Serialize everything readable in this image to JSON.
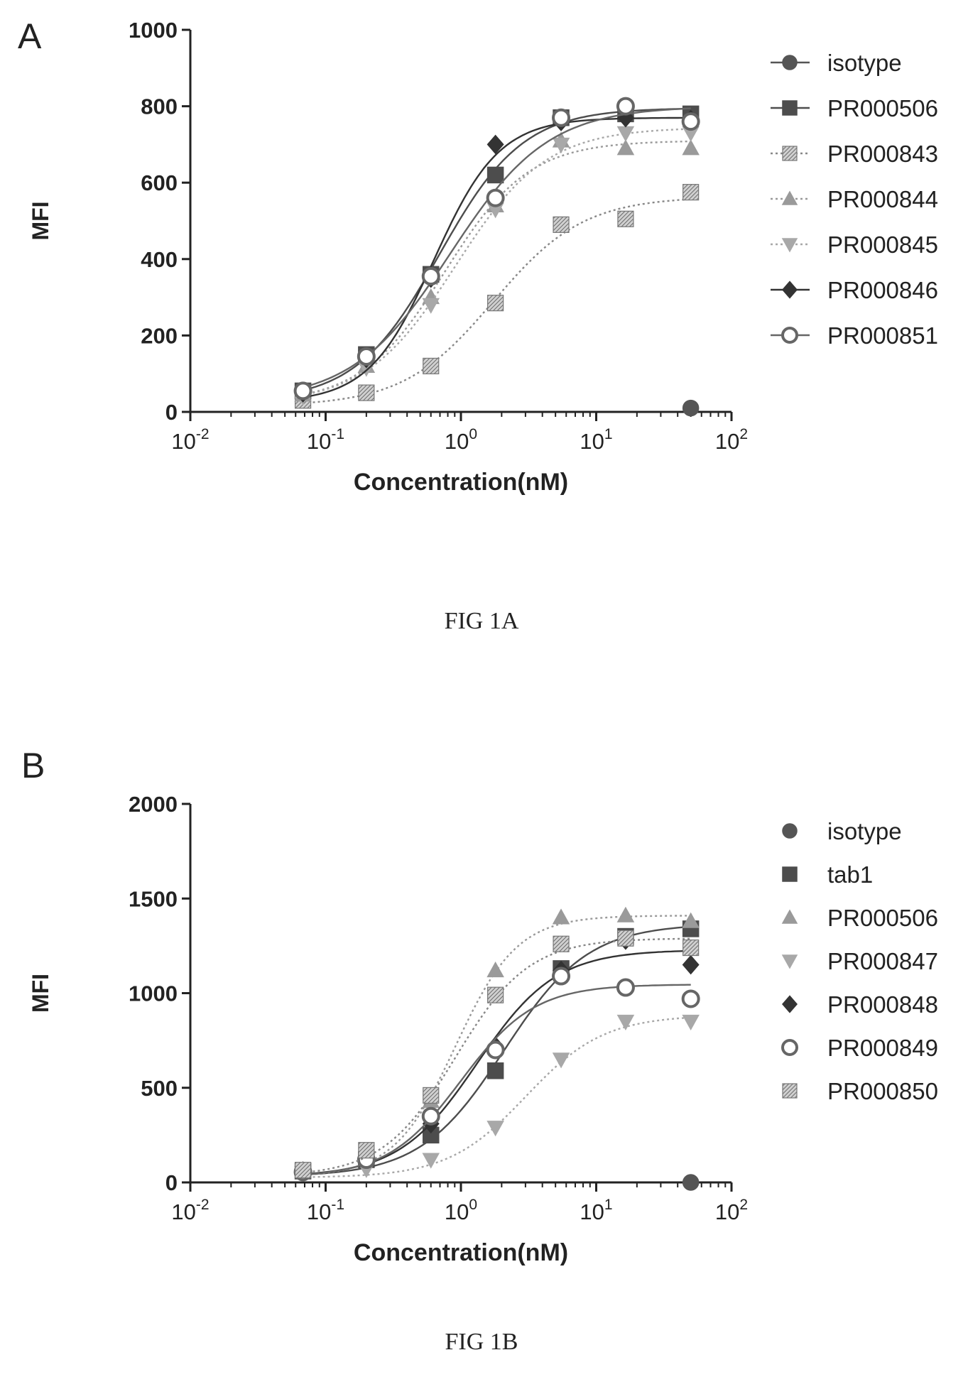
{
  "chart_data": [
    {
      "type": "scatter",
      "panel_label": "A",
      "caption": "FIG 1A",
      "xlabel": "Concentration(nM)",
      "ylabel": "MFI",
      "xscale": "log",
      "xlim": [
        0.01,
        100
      ],
      "ylim": [
        0,
        1000
      ],
      "x_ticks": [
        {
          "base": "10",
          "exp": "-2",
          "value": 0.01
        },
        {
          "base": "10",
          "exp": "-1",
          "value": 0.1
        },
        {
          "base": "10",
          "exp": "0",
          "value": 1
        },
        {
          "base": "10",
          "exp": "1",
          "value": 10
        },
        {
          "base": "10",
          "exp": "2",
          "value": 100
        }
      ],
      "y_ticks": [
        "0",
        "200",
        "400",
        "600",
        "800",
        "1000"
      ],
      "legend_position": "right",
      "x": [
        0.068,
        0.2,
        0.6,
        1.8,
        5.5,
        16.5,
        50
      ],
      "series": [
        {
          "name": "isotype",
          "marker": "circle",
          "color": "#555555",
          "values": [
            null,
            null,
            null,
            null,
            null,
            null,
            10
          ],
          "fit": false
        },
        {
          "name": "PR000506",
          "marker": "square",
          "color": "#4d4d4d",
          "values": [
            55,
            150,
            360,
            620,
            770,
            780,
            780
          ],
          "fit": true
        },
        {
          "name": "PR000843",
          "marker": "hatch",
          "color": "#888888",
          "values": [
            30,
            50,
            120,
            285,
            490,
            505,
            575
          ],
          "fit": true
        },
        {
          "name": "PR000844",
          "marker": "triangle",
          "color": "#9a9a9a",
          "values": [
            45,
            120,
            300,
            540,
            710,
            690,
            690
          ],
          "fit": true
        },
        {
          "name": "PR000845",
          "marker": "triangle-down",
          "color": "#a8a8a8",
          "values": [
            40,
            115,
            280,
            530,
            700,
            730,
            730
          ],
          "fit": true
        },
        {
          "name": "PR000846",
          "marker": "diamond",
          "color": "#333333",
          "values": [
            50,
            140,
            350,
            700,
            760,
            770,
            765
          ],
          "fit": true
        },
        {
          "name": "PR000851",
          "marker": "ring",
          "color": "#666666",
          "values": [
            55,
            145,
            355,
            560,
            770,
            800,
            760
          ],
          "fit": true
        }
      ]
    },
    {
      "type": "scatter",
      "panel_label": "B",
      "caption": "FIG 1B",
      "xlabel": "Concentration(nM)",
      "ylabel": "MFI",
      "xscale": "log",
      "xlim": [
        0.01,
        100
      ],
      "ylim": [
        0,
        2000
      ],
      "x_ticks": [
        {
          "base": "10",
          "exp": "-2",
          "value": 0.01
        },
        {
          "base": "10",
          "exp": "-1",
          "value": 0.1
        },
        {
          "base": "10",
          "exp": "0",
          "value": 1
        },
        {
          "base": "10",
          "exp": "1",
          "value": 10
        },
        {
          "base": "10",
          "exp": "2",
          "value": 100
        }
      ],
      "y_ticks": [
        "0",
        "500",
        "1000",
        "1500",
        "2000"
      ],
      "legend_position": "right",
      "x": [
        0.068,
        0.2,
        0.6,
        1.8,
        5.5,
        16.5,
        50
      ],
      "series": [
        {
          "name": "isotype",
          "marker": "circle",
          "color": "#555555",
          "values": [
            null,
            null,
            null,
            null,
            null,
            null,
            0
          ],
          "fit": false
        },
        {
          "name": "tab1",
          "marker": "square",
          "color": "#4d4d4d",
          "values": [
            60,
            120,
            250,
            590,
            1130,
            1300,
            1340
          ],
          "fit": true
        },
        {
          "name": "PR000506",
          "marker": "triangle",
          "color": "#9a9a9a",
          "values": [
            60,
            150,
            430,
            1120,
            1400,
            1410,
            1380
          ],
          "fit": true
        },
        {
          "name": "PR000847",
          "marker": "triangle-down",
          "color": "#a8a8a8",
          "values": [
            50,
            70,
            120,
            290,
            650,
            850,
            850
          ],
          "fit": true
        },
        {
          "name": "PR000848",
          "marker": "diamond",
          "color": "#333333",
          "values": [
            60,
            130,
            310,
            720,
            1120,
            1280,
            1150
          ],
          "fit": true
        },
        {
          "name": "PR000849",
          "marker": "ring",
          "color": "#666666",
          "values": [
            55,
            120,
            350,
            700,
            1090,
            1030,
            970
          ],
          "fit": true
        },
        {
          "name": "PR000850",
          "marker": "hatch",
          "color": "#888888",
          "values": [
            65,
            170,
            460,
            990,
            1260,
            1290,
            1240
          ],
          "fit": true
        }
      ]
    }
  ]
}
